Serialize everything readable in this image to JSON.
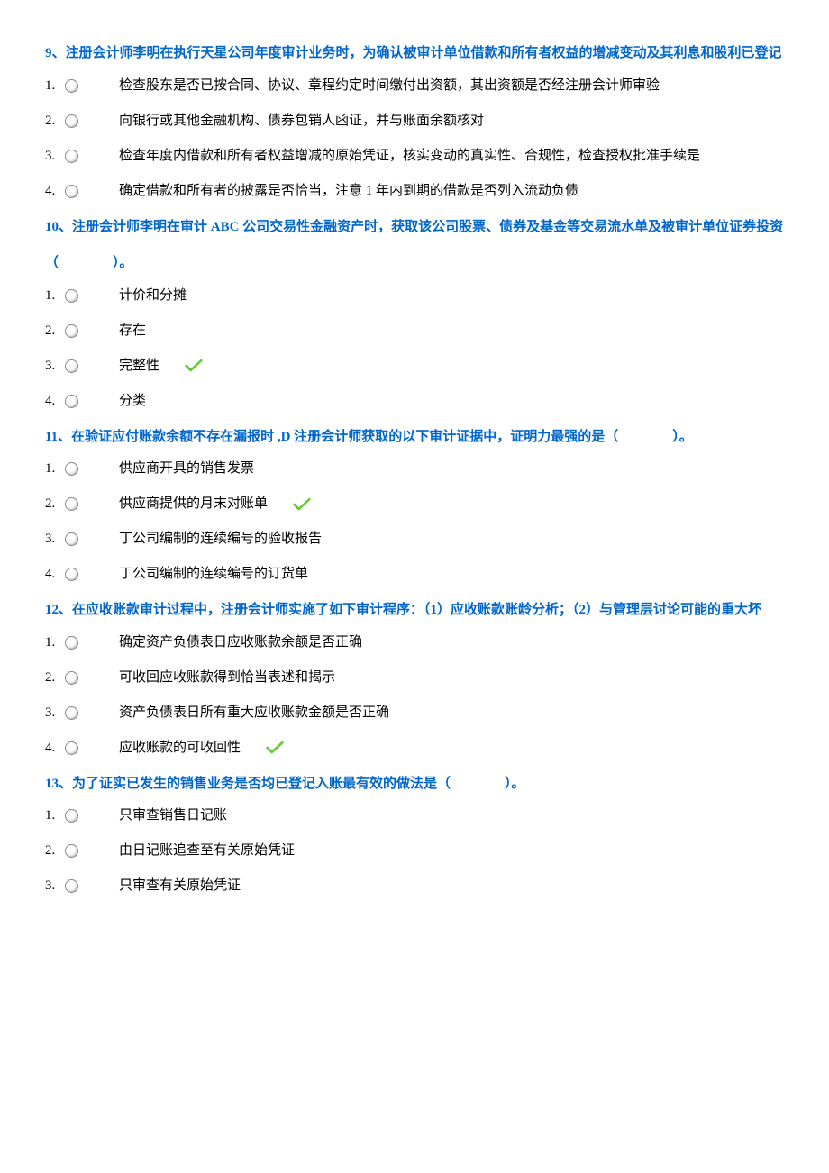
{
  "colors": {
    "title_color": "#0066cc",
    "text_color": "#000000",
    "check_color": "#66cc33",
    "background": "#ffffff"
  },
  "questions": [
    {
      "title": "9、注册会计师李明在执行天星公司年度审计业务时，为确认被审计单位借款和所有者权益的增减变动及其利息和股利已登记",
      "continuation": "",
      "options": [
        {
          "num": "1.",
          "text": "检查股东是否已按合同、协议、章程约定时间缴付出资额，其出资额是否经注册会计师审验",
          "correct": false
        },
        {
          "num": "2.",
          "text": "向银行或其他金融机构、债券包销人函证，并与账面余额核对",
          "correct": false
        },
        {
          "num": "3.",
          "text": "检查年度内借款和所有者权益增减的原始凭证，核实变动的真实性、合规性，检查授权批准手续是",
          "correct": false
        },
        {
          "num": "4.",
          "text": "确定借款和所有者的披露是否恰当，注意 1 年内到期的借款是否列入流动负债",
          "correct": false
        }
      ]
    },
    {
      "title": "10、注册会计师李明在审计 ABC 公司交易性金融资产时，获取该公司股票、债券及基金等交易流水单及被审计单位证券投资",
      "continuation": "（    ）。",
      "options": [
        {
          "num": "1.",
          "text": "计价和分摊",
          "correct": false
        },
        {
          "num": "2.",
          "text": "存在",
          "correct": false
        },
        {
          "num": "3.",
          "text": "完整性",
          "correct": true
        },
        {
          "num": "4.",
          "text": "分类",
          "correct": false
        }
      ]
    },
    {
      "title": "11、在验证应付账款余额不存在漏报时 ,D 注册会计师获取的以下审计证据中，证明力最强的是（    ）。",
      "continuation": "",
      "options": [
        {
          "num": "1.",
          "text": "供应商开具的销售发票",
          "correct": false
        },
        {
          "num": "2.",
          "text": "供应商提供的月末对账单",
          "correct": true
        },
        {
          "num": "3.",
          "text": "丁公司编制的连续编号的验收报告",
          "correct": false
        },
        {
          "num": "4.",
          "text": "丁公司编制的连续编号的订货单",
          "correct": false
        }
      ]
    },
    {
      "title": "12、在应收账款审计过程中，注册会计师实施了如下审计程序：（1）应收账款账龄分析；（2）与管理层讨论可能的重大坏",
      "continuation": "",
      "options": [
        {
          "num": "1.",
          "text": "确定资产负债表日应收账款余额是否正确",
          "correct": false
        },
        {
          "num": "2.",
          "text": "可收回应收账款得到恰当表述和揭示",
          "correct": false
        },
        {
          "num": "3.",
          "text": "资产负债表日所有重大应收账款金额是否正确",
          "correct": false
        },
        {
          "num": "4.",
          "text": "应收账款的可收回性",
          "correct": true
        }
      ]
    },
    {
      "title": "13、为了证实已发生的销售业务是否均已登记入账最有效的做法是（    ）。",
      "continuation": "",
      "options": [
        {
          "num": "1.",
          "text": "只审查销售日记账",
          "correct": false
        },
        {
          "num": "2.",
          "text": "由日记账追查至有关原始凭证",
          "correct": false
        },
        {
          "num": "3.",
          "text": "只审查有关原始凭证",
          "correct": false
        }
      ]
    }
  ]
}
